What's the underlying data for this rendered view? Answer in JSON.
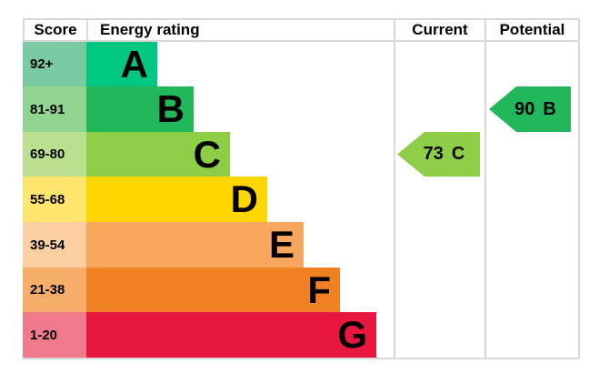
{
  "header": {
    "score": "Score",
    "energy_rating": "Energy rating",
    "current": "Current",
    "potential": "Potential"
  },
  "chart_data": {
    "type": "bar",
    "description": "Energy performance certificate (EPC) energy efficiency rating chart",
    "columns": [
      "Score",
      "Energy rating",
      "Current",
      "Potential"
    ],
    "bands": [
      {
        "score_range": "92+",
        "rating": "A",
        "bar_color": "#00c781",
        "score_cell_color": "#7ac9a5"
      },
      {
        "score_range": "81-91",
        "rating": "B",
        "bar_color": "#22b75a",
        "score_cell_color": "#90d492"
      },
      {
        "score_range": "69-80",
        "rating": "C",
        "bar_color": "#8dce46",
        "score_cell_color": "#badf8f"
      },
      {
        "score_range": "55-68",
        "rating": "D",
        "bar_color": "#ffd500",
        "score_cell_color": "#ffe46e"
      },
      {
        "score_range": "39-54",
        "rating": "E",
        "bar_color": "#f9a65f",
        "score_cell_color": "#fbcfa2"
      },
      {
        "score_range": "21-38",
        "rating": "F",
        "bar_color": "#ef8023",
        "score_cell_color": "#f5ad69"
      },
      {
        "score_range": "1-20",
        "rating": "G",
        "bar_color": "#e9173f",
        "score_cell_color": "#f0798b"
      }
    ],
    "current": {
      "score": "73",
      "rating": "C",
      "arrow_color": "#8dce46"
    },
    "potential": {
      "score": "90",
      "rating": "B",
      "arrow_color": "#22b75a"
    }
  },
  "colors": {
    "border": "#d9d9d9",
    "text": "#000000",
    "background": "#ffffff"
  }
}
